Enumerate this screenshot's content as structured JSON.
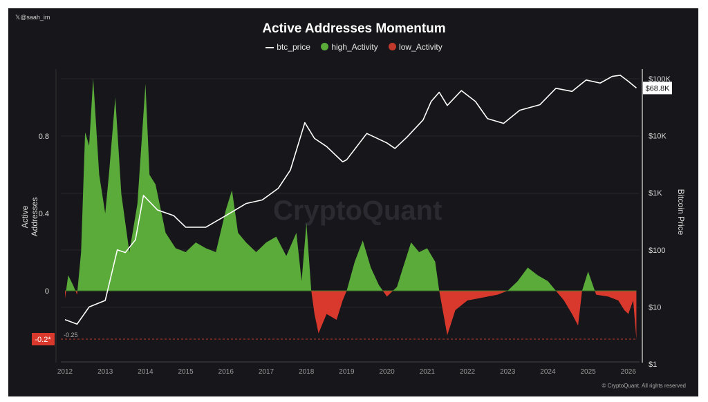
{
  "header": {
    "handle": "@saah_im",
    "handle_icon": "x-logo-icon"
  },
  "watermark": "CryptoQuant",
  "copyright": "© CryptoQuant. All rights reserved",
  "colors": {
    "background": "#17171b",
    "high": "#5aab3a",
    "low": "#d8392c",
    "price": "#ffffff",
    "threshold": "#c0392b"
  },
  "chart_data": {
    "type": "area",
    "title": "Active Addresses Momentum",
    "legend": [
      "btc_price",
      "high_Activity",
      "low_Activity"
    ],
    "legend_placement": "top-center",
    "ylabel": "Active Addresses",
    "ylabel_right": "Bitcoin Price",
    "xlim": [
      2011.9,
      2026.4
    ],
    "ylim": [
      -0.38,
      1.15
    ],
    "ylim_right_log": [
      1,
      130000
    ],
    "x_ticks": [
      "2012",
      "2013",
      "2014",
      "2015",
      "2016",
      "2017",
      "2018",
      "2019",
      "2020",
      "2021",
      "2022",
      "2023",
      "2024",
      "2025",
      "2026"
    ],
    "y_ticks": [
      "0.8",
      "0.4",
      "0"
    ],
    "y_ticks_right": [
      "$100K",
      "$10K",
      "$1K",
      "$100",
      "$10",
      "$1"
    ],
    "threshold": {
      "value": -0.25,
      "label": "-0.25",
      "marker_label": "-0.2*"
    },
    "last_price_label": "$68.8K",
    "momentum": {
      "x": [
        2012.0,
        2012.08,
        2012.2,
        2012.3,
        2012.4,
        2012.5,
        2012.6,
        2012.7,
        2012.85,
        2013.0,
        2013.1,
        2013.25,
        2013.4,
        2013.6,
        2013.8,
        2014.0,
        2014.1,
        2014.25,
        2014.5,
        2014.75,
        2015.0,
        2015.25,
        2015.5,
        2015.75,
        2016.0,
        2016.15,
        2016.3,
        2016.5,
        2016.75,
        2017.0,
        2017.25,
        2017.5,
        2017.75,
        2017.88,
        2018.0,
        2018.12,
        2018.2,
        2018.3,
        2018.5,
        2018.75,
        2018.9,
        2019.0,
        2019.2,
        2019.4,
        2019.6,
        2019.8,
        2020.0,
        2020.25,
        2020.4,
        2020.6,
        2020.8,
        2021.0,
        2021.2,
        2021.3,
        2021.5,
        2021.7,
        2022.0,
        2022.25,
        2022.5,
        2022.75,
        2023.0,
        2023.25,
        2023.5,
        2023.75,
        2024.0,
        2024.2,
        2024.4,
        2024.6,
        2024.75,
        2024.85,
        2025.0,
        2025.2,
        2025.5,
        2025.75,
        2025.9,
        2026.0,
        2026.12,
        2026.2
      ],
      "y": [
        -0.04,
        0.08,
        0.03,
        -0.02,
        0.2,
        0.82,
        0.75,
        1.1,
        0.6,
        0.4,
        0.62,
        1.0,
        0.5,
        0.2,
        0.45,
        1.07,
        0.6,
        0.55,
        0.3,
        0.22,
        0.2,
        0.25,
        0.22,
        0.2,
        0.42,
        0.52,
        0.3,
        0.25,
        0.2,
        0.25,
        0.28,
        0.18,
        0.3,
        0.05,
        0.35,
        0.0,
        -0.12,
        -0.22,
        -0.12,
        -0.15,
        -0.05,
        0.0,
        0.15,
        0.26,
        0.12,
        0.03,
        -0.03,
        0.02,
        0.12,
        0.25,
        0.2,
        0.22,
        0.15,
        0.0,
        -0.23,
        -0.1,
        -0.05,
        -0.04,
        -0.03,
        -0.02,
        0.0,
        0.05,
        0.12,
        0.08,
        0.05,
        0.0,
        -0.05,
        -0.12,
        -0.18,
        0.0,
        0.1,
        -0.02,
        -0.03,
        -0.05,
        -0.1,
        -0.12,
        -0.05,
        -0.25
      ]
    },
    "btc_price": {
      "x": [
        2012.0,
        2012.3,
        2012.6,
        2013.0,
        2013.3,
        2013.5,
        2013.75,
        2013.95,
        2014.3,
        2014.7,
        2015.0,
        2015.5,
        2016.0,
        2016.5,
        2016.9,
        2017.3,
        2017.6,
        2017.96,
        2018.2,
        2018.5,
        2018.9,
        2019.0,
        2019.5,
        2020.0,
        2020.2,
        2020.5,
        2020.9,
        2021.1,
        2021.3,
        2021.5,
        2021.85,
        2022.2,
        2022.5,
        2022.9,
        2023.3,
        2023.8,
        2024.2,
        2024.6,
        2024.95,
        2025.3,
        2025.6,
        2025.8,
        2026.0,
        2026.2
      ],
      "y": [
        6,
        5,
        10,
        13,
        100,
        90,
        150,
        900,
        500,
        400,
        250,
        250,
        400,
        650,
        750,
        1200,
        2500,
        17000,
        9000,
        6500,
        3500,
        3800,
        11000,
        7500,
        6000,
        9500,
        19000,
        40000,
        58000,
        34000,
        62000,
        40000,
        20000,
        16500,
        28000,
        35000,
        68000,
        60000,
        95000,
        84000,
        110000,
        115000,
        90000,
        68800
      ]
    }
  }
}
